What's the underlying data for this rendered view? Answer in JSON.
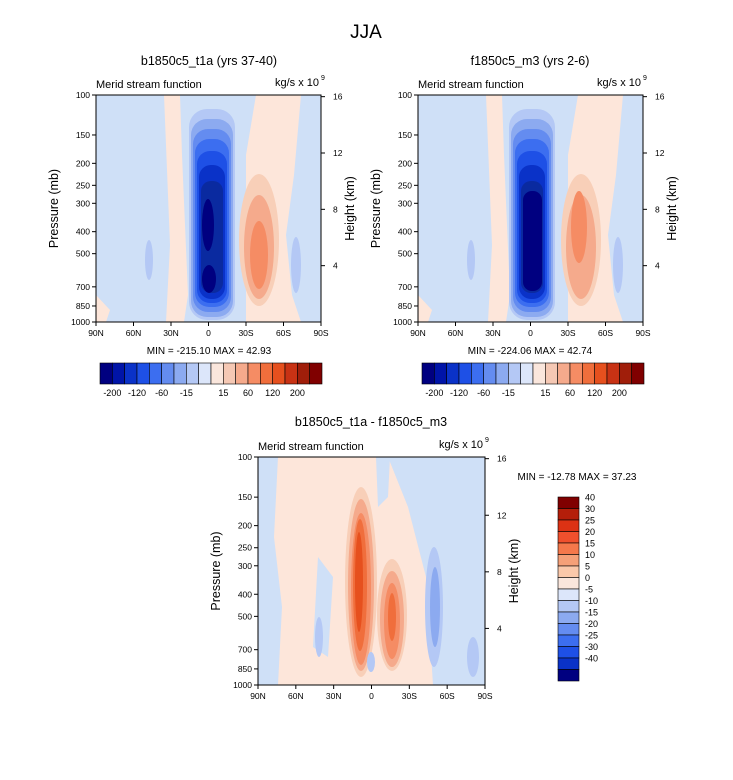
{
  "title": "JJA",
  "chart_data": [
    {
      "type": "heatmap",
      "id": "p1",
      "title": "b1850c5_t1a (yrs 37-40)",
      "left_label": "Merid stream function",
      "units": "kg/s x 10",
      "units_exp": "9",
      "ylabel": "Pressure (mb)",
      "ylabel_right": "Height (km)",
      "x_ticks": [
        "90N",
        "60N",
        "30N",
        "0",
        "30S",
        "60S",
        "90S"
      ],
      "x_range": [
        90,
        -90
      ],
      "y_ticks": [
        100,
        150,
        200,
        250,
        300,
        400,
        500,
        700,
        850,
        1000
      ],
      "y_range": [
        100,
        1000
      ],
      "height_ticks": [
        16,
        12,
        8,
        4
      ],
      "stats": "MIN = -215.10  MAX = 42.93",
      "min": -215.1,
      "max": 42.93,
      "colorbar": "cb1"
    },
    {
      "type": "heatmap",
      "id": "p2",
      "title": "f1850c5_m3 (yrs 2-6)",
      "left_label": "Merid stream function",
      "units": "kg/s x 10",
      "units_exp": "9",
      "ylabel": "Pressure (mb)",
      "ylabel_right": "Height (km)",
      "x_ticks": [
        "90N",
        "60N",
        "30N",
        "0",
        "30S",
        "60S",
        "90S"
      ],
      "x_range": [
        90,
        -90
      ],
      "y_ticks": [
        100,
        150,
        200,
        250,
        300,
        400,
        500,
        700,
        850,
        1000
      ],
      "y_range": [
        100,
        1000
      ],
      "height_ticks": [
        16,
        12,
        8,
        4
      ],
      "stats": "MIN = -224.06  MAX =  42.74",
      "min": -224.06,
      "max": 42.74,
      "colorbar": "cb2"
    },
    {
      "type": "heatmap",
      "id": "p3",
      "title": "b1850c5_t1a - f1850c5_m3",
      "left_label": "Merid stream function",
      "units": "kg/s x 10",
      "units_exp": "9",
      "ylabel": "Pressure (mb)",
      "ylabel_right": "Height (km)",
      "x_ticks": [
        "90N",
        "60N",
        "30N",
        "0",
        "30S",
        "60S",
        "90S"
      ],
      "x_range": [
        90,
        -90
      ],
      "y_ticks": [
        100,
        150,
        200,
        250,
        300,
        400,
        500,
        700,
        850,
        1000
      ],
      "y_range": [
        100,
        1000
      ],
      "height_ticks": [
        16,
        12,
        8,
        4
      ],
      "stats": "MIN = -12.78  MAX =  37.23",
      "min": -12.78,
      "max": 37.23,
      "colorbar": "cb3"
    }
  ],
  "colorbars": {
    "cb1": {
      "labels": [
        "-200",
        "-120",
        "-60",
        "-15",
        "15",
        "60",
        "120",
        "200"
      ],
      "levels": [
        -200,
        -160,
        -120,
        -80,
        -60,
        -40,
        -15,
        0,
        15,
        40,
        60,
        80,
        120,
        160,
        200
      ],
      "colors": [
        "#000080",
        "#0014a8",
        "#0a32c8",
        "#1e50e6",
        "#3c6ef0",
        "#648cf0",
        "#8caaf0",
        "#b4c8f5",
        "#dce6fa",
        "#fae6dc",
        "#f5c8b4",
        "#f5aa8c",
        "#f58c64",
        "#f06e3c",
        "#e6501e",
        "#c83214",
        "#a01e0a",
        "#800000"
      ]
    },
    "cb2": {
      "labels": [
        "-200",
        "-120",
        "-60",
        "-15",
        "15",
        "60",
        "120",
        "200"
      ],
      "levels": [
        -200,
        -160,
        -120,
        -80,
        -60,
        -40,
        -15,
        0,
        15,
        40,
        60,
        80,
        120,
        160,
        200
      ],
      "colors": [
        "#000080",
        "#0014a8",
        "#0a32c8",
        "#1e50e6",
        "#3c6ef0",
        "#648cf0",
        "#8caaf0",
        "#b4c8f5",
        "#dce6fa",
        "#fae6dc",
        "#f5c8b4",
        "#f5aa8c",
        "#f58c64",
        "#f06e3c",
        "#e6501e",
        "#c83214",
        "#a01e0a",
        "#800000"
      ]
    },
    "cb3": {
      "labels": [
        "40",
        "30",
        "25",
        "20",
        "15",
        "10",
        "5",
        "0",
        "-5",
        "-10",
        "-15",
        "-20",
        "-25",
        "-30",
        "-40"
      ],
      "colors": [
        "#800000",
        "#b41e0a",
        "#dc3214",
        "#f0502d",
        "#f5784b",
        "#f5a078",
        "#fac8aa",
        "#fae6dc",
        "#dce6fa",
        "#b4c8f5",
        "#8caaf0",
        "#648cf0",
        "#3c6ef0",
        "#1e50e6",
        "#0a32c8",
        "#000080"
      ]
    }
  }
}
